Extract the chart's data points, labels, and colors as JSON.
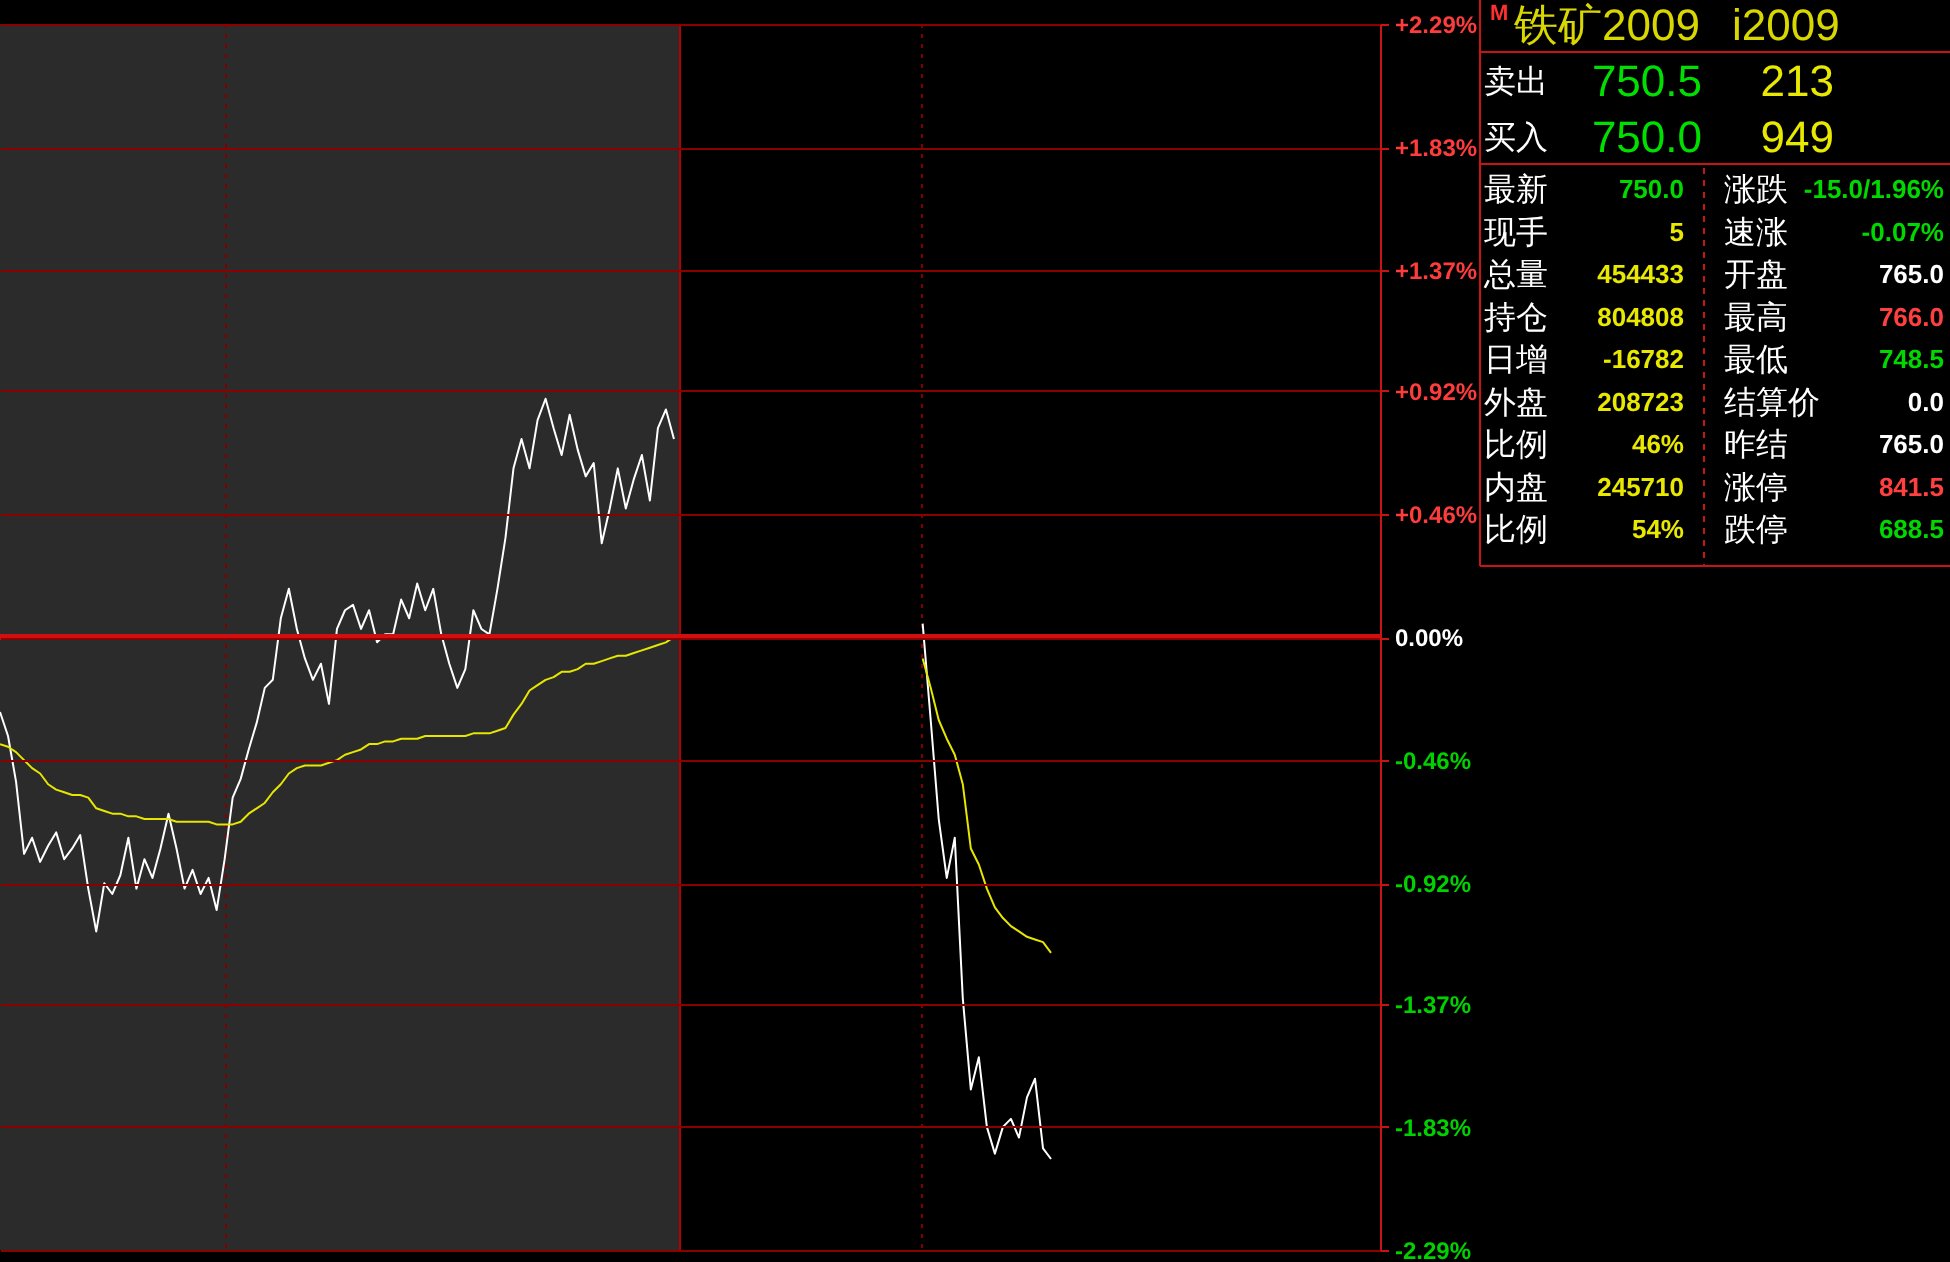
{
  "chart_data": [
    {
      "type": "line",
      "categories": [
        null,
        null,
        null,
        null,
        null,
        null,
        null,
        null,
        null,
        null,
        null,
        null,
        null,
        null,
        null,
        null,
        null,
        null,
        null,
        null,
        null,
        null,
        null,
        null,
        null,
        null,
        null,
        null,
        null,
        null,
        null,
        null,
        null,
        null,
        null,
        null,
        null,
        null,
        null,
        null,
        null,
        null,
        null,
        null,
        null,
        null,
        null,
        null,
        null,
        null,
        null,
        null,
        null,
        null,
        null,
        null,
        null,
        null,
        null,
        null,
        null,
        null,
        null,
        null,
        null,
        null,
        null,
        null,
        null,
        null,
        null,
        null,
        null,
        null,
        null,
        null,
        null,
        null,
        null,
        null,
        null,
        null,
        null,
        null,
        null,
        null,
        null,
        null,
        null,
        null,
        null,
        null,
        null,
        null,
        null,
        null,
        null,
        null,
        null,
        null,
        null,
        null,
        null,
        null,
        null,
        null,
        null,
        null,
        null,
        null,
        null,
        null,
        null,
        null,
        null,
        null,
        null,
        null,
        null,
        null,
        null,
        null,
        null,
        null,
        null,
        null,
        null,
        null,
        null,
        null,
        null,
        null,
        null,
        null,
        null,
        null,
        null,
        null,
        null,
        null,
        null,
        null,
        null,
        null,
        null,
        null,
        null,
        null,
        null,
        null,
        null,
        null,
        null,
        null,
        null,
        null,
        null,
        null,
        null,
        null,
        null,
        null,
        null,
        null,
        null,
        null,
        null,
        null,
        null,
        null,
        null,
        null,
        null
      ],
      "series": [
        {
          "color": "#ffffff",
          "values": [
            -0.28,
            -0.37,
            -0.54,
            -0.81,
            -0.75,
            -0.84,
            -0.78,
            -0.73,
            -0.83,
            -0.79,
            -0.74,
            -0.94,
            -1.1,
            -0.92,
            -0.96,
            -0.89,
            -0.75,
            -0.94,
            -0.83,
            -0.9,
            -0.79,
            -0.66,
            -0.79,
            -0.94,
            -0.87,
            -0.96,
            -0.9,
            -1.02,
            -0.83,
            -0.6,
            -0.53,
            -0.42,
            -0.32,
            -0.19,
            -0.16,
            0.07,
            0.18,
            0.03,
            -0.08,
            -0.16,
            -0.1,
            -0.25,
            0.03,
            0.1,
            0.12,
            0.03,
            0.1,
            -0.02,
            0.01,
            0.01,
            0.14,
            0.07,
            0.2,
            0.1,
            0.18,
            0.01,
            -0.1,
            -0.19,
            -0.12,
            0.1,
            0.03,
            0.01,
            0.18,
            0.37,
            0.63,
            0.74,
            0.63,
            0.81,
            0.89,
            0.78,
            0.68,
            0.83,
            0.7,
            0.6,
            0.65,
            0.35,
            0.48,
            0.63,
            0.48,
            0.59,
            0.68,
            0.51,
            0.78,
            0.85,
            0.74,
            null,
            null,
            null,
            null,
            null,
            null,
            null,
            null,
            null,
            null,
            null,
            null,
            null,
            null,
            null,
            null,
            null,
            null,
            null,
            null,
            null,
            null,
            null,
            null,
            null,
            null,
            null,
            null,
            null,
            null,
            0.05,
            -0.31,
            -0.68,
            -0.9,
            -0.75,
            -1.35,
            -1.69,
            -1.57,
            -1.83,
            -1.93,
            -1.83,
            -1.8,
            -1.87,
            -1.72,
            -1.65,
            -1.91,
            -1.95,
            null,
            null,
            null,
            null,
            null,
            null,
            null,
            null,
            null,
            null,
            null,
            null,
            null,
            null,
            null,
            null,
            null,
            null,
            null,
            null,
            null,
            null,
            null,
            null,
            null,
            null,
            null,
            null,
            null,
            null,
            null,
            null,
            null,
            null,
            null,
            null,
            null,
            null,
            null,
            null,
            null
          ]
        },
        {
          "color": "#e6e600",
          "values": [
            -0.4,
            -0.41,
            -0.43,
            -0.46,
            -0.49,
            -0.51,
            -0.55,
            -0.57,
            -0.58,
            -0.59,
            -0.59,
            -0.6,
            -0.64,
            -0.65,
            -0.66,
            -0.66,
            -0.67,
            -0.67,
            -0.68,
            -0.68,
            -0.68,
            -0.68,
            -0.69,
            -0.69,
            -0.69,
            -0.69,
            -0.69,
            -0.7,
            -0.7,
            -0.7,
            -0.69,
            -0.66,
            -0.64,
            -0.62,
            -0.58,
            -0.55,
            -0.51,
            -0.49,
            -0.48,
            -0.48,
            -0.48,
            -0.47,
            -0.46,
            -0.44,
            -0.43,
            -0.42,
            -0.4,
            -0.4,
            -0.39,
            -0.39,
            -0.38,
            -0.38,
            -0.38,
            -0.37,
            -0.37,
            -0.37,
            -0.37,
            -0.37,
            -0.37,
            -0.36,
            -0.36,
            -0.36,
            -0.35,
            -0.34,
            -0.29,
            -0.25,
            -0.2,
            -0.18,
            -0.16,
            -0.15,
            -0.13,
            -0.13,
            -0.12,
            -0.1,
            -0.1,
            -0.09,
            -0.08,
            -0.07,
            -0.07,
            -0.06,
            -0.05,
            -0.04,
            -0.03,
            -0.02,
            0.0,
            null,
            null,
            null,
            null,
            null,
            null,
            null,
            null,
            null,
            null,
            null,
            null,
            null,
            null,
            null,
            null,
            null,
            null,
            null,
            null,
            null,
            null,
            null,
            null,
            null,
            null,
            null,
            null,
            null,
            null,
            -0.08,
            -0.19,
            -0.31,
            -0.38,
            -0.44,
            -0.55,
            -0.79,
            -0.85,
            -0.94,
            -1.01,
            -1.05,
            -1.08,
            -1.1,
            -1.12,
            -1.13,
            -1.14,
            -1.18,
            null,
            null,
            null,
            null,
            null,
            null,
            null,
            null,
            null,
            null,
            null,
            null,
            null,
            null,
            null,
            null,
            null,
            null,
            null,
            null,
            null,
            null,
            null,
            null,
            null,
            null,
            null,
            null,
            null,
            null,
            null,
            null,
            null,
            null,
            null,
            null,
            null,
            null,
            null,
            null,
            null
          ]
        }
      ],
      "ylim": [
        -2.29,
        2.29
      ],
      "yticks": [
        {
          "value": -2.29,
          "label": "-2.29%"
        },
        {
          "value": -1.83,
          "label": "-1.83%"
        },
        {
          "value": -1.37,
          "label": "-1.37%"
        },
        {
          "value": -0.92,
          "label": "-0.92%"
        },
        {
          "value": -0.46,
          "label": "-0.46%"
        },
        {
          "value": 0,
          "label": "0.00%"
        },
        {
          "value": 0.46,
          "label": "+0.46%"
        },
        {
          "value": 0.92,
          "label": "+0.92%"
        },
        {
          "value": 1.37,
          "label": "+1.37%"
        },
        {
          "value": 1.83,
          "label": "+1.83%"
        },
        {
          "value": 2.29,
          "label": "+2.29%"
        }
      ],
      "grid": "y",
      "tick_labels": "y",
      "ref_lines": [
        {
          "axis": "y",
          "value": 0,
          "color": "#d01010"
        }
      ]
    },
    {
      "type": "other",
      "annotations": [
        "M",
        "铁矿2009",
        "i2009",
        "卖出",
        "750.5",
        "213",
        "买入",
        "750.0",
        "949",
        "最新",
        "750.0",
        "涨跌",
        "-15.0/1.96%",
        "现手",
        "5",
        "速涨",
        "-0.07%",
        "总量",
        "454433",
        "开盘",
        "765.0",
        "持仓",
        "804808",
        "最高",
        "766.0",
        "日增",
        "-16782",
        "最低",
        "748.5",
        "外盘",
        "208723",
        "结算价",
        "0.0",
        "比例",
        "46%",
        "昨结",
        "765.0",
        "内盘",
        "245710",
        "涨停",
        "841.5",
        "比例",
        "54%",
        "跌停",
        "688.5"
      ],
      "colors": [
        "#ff3030",
        "#d8d800",
        "#d8d800",
        "#ffffff",
        "#00e000",
        "#e8e800",
        "#ffffff",
        "#00e000",
        "#e8e800",
        "#ffffff",
        "#00d800",
        "#ffffff",
        "#00d800",
        "#ffffff",
        "#e8e800",
        "#ffffff",
        "#00d800",
        "#ffffff",
        "#e8e800",
        "#ffffff",
        "#ffffff",
        "#ffffff",
        "#e8e800",
        "#ffffff",
        "#ff4040",
        "#ffffff",
        "#e8e800",
        "#ffffff",
        "#00d800",
        "#ffffff",
        "#e8e800",
        "#ffffff",
        "#ffffff",
        "#ffffff",
        "#e8e800",
        "#ffffff",
        "#ffffff",
        "#ffffff",
        "#e8e800",
        "#ffffff",
        "#ff4040",
        "#ffffff",
        "#e8e800",
        "#ffffff",
        "#00d800"
      ]
    }
  ]
}
